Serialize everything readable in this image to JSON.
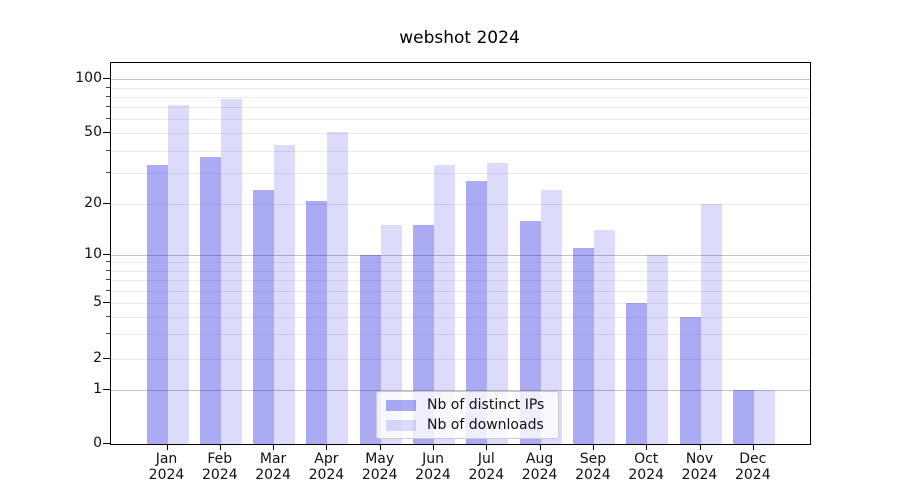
{
  "chart_data": {
    "type": "bar",
    "title": "webshot 2024",
    "categories": [
      "Jan",
      "Feb",
      "Mar",
      "Apr",
      "May",
      "Jun",
      "Jul",
      "Aug",
      "Sep",
      "Oct",
      "Nov",
      "Dec"
    ],
    "category_sublabel": "2024",
    "series": [
      {
        "name": "Nb of distinct IPs",
        "color": "rgba(10,10,220,0.34)",
        "color_hex": "#a9a9f4",
        "values": [
          33,
          37,
          24,
          21,
          10,
          15,
          27,
          16,
          11,
          5,
          4,
          1
        ]
      },
      {
        "name": "Nb of downloads",
        "color": "rgba(10,10,220,0.14)",
        "color_hex": "#dcdcfa",
        "values": [
          72,
          78,
          43,
          51,
          15,
          33,
          34,
          24,
          14,
          10,
          20,
          1
        ]
      }
    ],
    "yscale": "log-like (symlog/asinh, linear below 1)",
    "ylim": [
      0,
      120
    ],
    "yticks": [
      100,
      50,
      20,
      10,
      5,
      2,
      1,
      0
    ],
    "grid": true,
    "legend_position": "lower center"
  }
}
